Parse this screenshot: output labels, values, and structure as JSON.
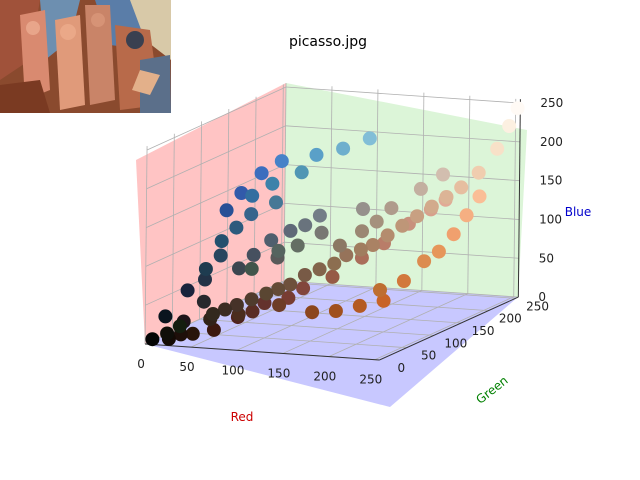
{
  "chart_data": {
    "type": "scatter",
    "projection": "3d",
    "title": "picasso.jpg",
    "axes": {
      "x": {
        "label": "Red",
        "label_color": "#cc0000",
        "range": [
          0,
          255
        ],
        "ticks": [
          0,
          50,
          100,
          150,
          200,
          250
        ]
      },
      "y": {
        "label": "Green",
        "label_color": "#008000",
        "range": [
          0,
          255
        ],
        "ticks": [
          0,
          50,
          100,
          150,
          200,
          250
        ]
      },
      "z": {
        "label": "Blue",
        "label_color": "#0000cc",
        "range": [
          0,
          255
        ],
        "ticks": [
          0,
          50,
          100,
          150,
          200,
          250
        ]
      }
    },
    "grid": true,
    "pane_colors": {
      "red_green_floor": "#c8c8ff",
      "red_blue_wall": "#ffc4c4",
      "green_blue_wall": "#dcf5d8"
    },
    "point_color_rule": "each point colored with its own RGB value",
    "series": [
      {
        "points": [
          [
            20,
            30,
            15
          ],
          [
            30,
            20,
            25
          ],
          [
            15,
            15,
            10
          ],
          [
            5,
            5,
            5
          ],
          [
            40,
            40,
            45
          ],
          [
            10,
            20,
            30
          ],
          [
            25,
            35,
            60
          ],
          [
            35,
            50,
            70
          ],
          [
            50,
            40,
            30
          ],
          [
            60,
            45,
            35
          ],
          [
            70,
            50,
            40
          ],
          [
            80,
            60,
            45
          ],
          [
            90,
            70,
            50
          ],
          [
            100,
            75,
            55
          ],
          [
            110,
            80,
            60
          ],
          [
            120,
            90,
            70
          ],
          [
            130,
            100,
            75
          ],
          [
            140,
            110,
            80
          ],
          [
            150,
            115,
            90
          ],
          [
            160,
            125,
            95
          ],
          [
            170,
            130,
            100
          ],
          [
            180,
            140,
            110
          ],
          [
            190,
            150,
            120
          ],
          [
            200,
            160,
            130
          ],
          [
            210,
            170,
            140
          ],
          [
            220,
            180,
            150
          ],
          [
            230,
            190,
            160
          ],
          [
            240,
            205,
            175
          ],
          [
            248,
            225,
            200
          ],
          [
            252,
            240,
            225
          ],
          [
            255,
            250,
            245
          ],
          [
            60,
            70,
            80
          ],
          [
            70,
            80,
            95
          ],
          [
            80,
            95,
            110
          ],
          [
            95,
            105,
            120
          ],
          [
            105,
            115,
            125
          ],
          [
            115,
            125,
            135
          ],
          [
            30,
            60,
            80
          ],
          [
            40,
            70,
            95
          ],
          [
            35,
            80,
            110
          ],
          [
            45,
            90,
            125
          ],
          [
            55,
            100,
            140
          ],
          [
            50,
            110,
            160
          ],
          [
            70,
            120,
            150
          ],
          [
            60,
            130,
            170
          ],
          [
            80,
            150,
            180
          ],
          [
            90,
            160,
            200
          ],
          [
            110,
            175,
            205
          ],
          [
            130,
            190,
            215
          ],
          [
            60,
            110,
            190
          ],
          [
            70,
            130,
            200
          ],
          [
            50,
            90,
            170
          ],
          [
            40,
            80,
            150
          ],
          [
            140,
            70,
            30
          ],
          [
            160,
            80,
            30
          ],
          [
            180,
            90,
            35
          ],
          [
            200,
            100,
            40
          ],
          [
            190,
            110,
            50
          ],
          [
            210,
            120,
            60
          ],
          [
            220,
            140,
            80
          ],
          [
            230,
            150,
            90
          ],
          [
            240,
            160,
            110
          ],
          [
            245,
            175,
            130
          ],
          [
            250,
            190,
            150
          ],
          [
            120,
            60,
            50
          ],
          [
            130,
            70,
            60
          ],
          [
            100,
            50,
            45
          ],
          [
            90,
            45,
            35
          ],
          [
            80,
            35,
            30
          ],
          [
            110,
            60,
            40
          ],
          [
            150,
            90,
            70
          ],
          [
            170,
            110,
            90
          ],
          [
            185,
            125,
            105
          ],
          [
            200,
            145,
            125
          ],
          [
            215,
            160,
            140
          ],
          [
            225,
            170,
            150
          ],
          [
            140,
            120,
            100
          ],
          [
            155,
            135,
            115
          ],
          [
            165,
            145,
            125
          ],
          [
            175,
            155,
            140
          ],
          [
            195,
            175,
            160
          ],
          [
            210,
            190,
            175
          ],
          [
            20,
            10,
            5
          ],
          [
            40,
            20,
            10
          ],
          [
            60,
            25,
            15
          ],
          [
            30,
            15,
            10
          ],
          [
            50,
            35,
            25
          ],
          [
            75,
            45,
            30
          ],
          [
            90,
            90,
            90
          ],
          [
            120,
            120,
            115
          ],
          [
            150,
            145,
            140
          ],
          [
            100,
            110,
            100
          ],
          [
            85,
            100,
            95
          ],
          [
            65,
            85,
            75
          ]
        ]
      }
    ]
  },
  "thumbnail": {
    "alt": "picasso.jpg"
  }
}
